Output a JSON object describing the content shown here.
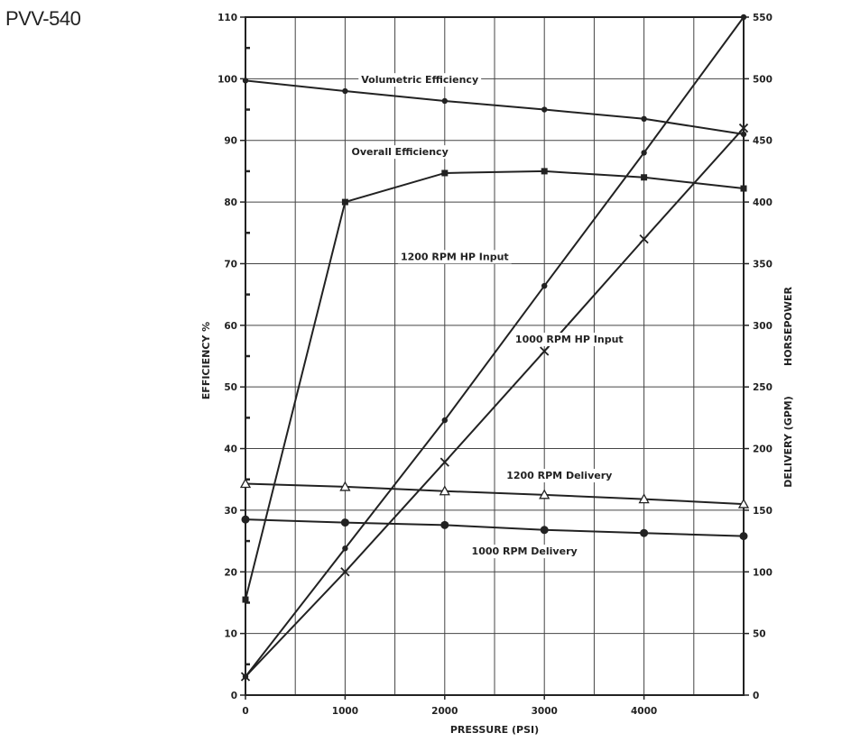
{
  "page_title": "PVV-540",
  "chart_data": {
    "type": "line",
    "xlabel": "PRESSURE (PSI)",
    "ylabel_left": "EFFICIENCY %",
    "ylabel_right": [
      "HORSEPOWER",
      "DELIVERY (GPM)"
    ],
    "xlim": [
      0,
      5000
    ],
    "ylim_left": [
      0,
      110
    ],
    "ylim_right": [
      0,
      550
    ],
    "x_ticks": [
      0,
      1000,
      2000,
      3000,
      4000
    ],
    "y_ticks_left": [
      0,
      10,
      20,
      30,
      40,
      50,
      60,
      70,
      80,
      90,
      100,
      110
    ],
    "y_ticks_right": [
      0,
      50,
      100,
      150,
      200,
      250,
      300,
      350,
      400,
      450,
      500,
      550
    ],
    "grid": true,
    "series": [
      {
        "name": "Volumetric Efficiency",
        "axis": "left",
        "marker": "dot-small",
        "x": [
          0,
          1000,
          2000,
          3000,
          4000,
          5000
        ],
        "y": [
          99.7,
          98,
          96.4,
          95,
          93.5,
          91
        ],
        "label_pos": [
          1750,
          99.3
        ]
      },
      {
        "name": "Overall Efficiency",
        "axis": "left",
        "marker": "square",
        "x": [
          0,
          1000,
          2000,
          3000,
          4000,
          5000
        ],
        "y": [
          15.5,
          80,
          84.7,
          85,
          84,
          82.2
        ],
        "label_pos": [
          1550,
          87.6
        ]
      },
      {
        "name": "1200 RPM HP Input",
        "axis": "right",
        "marker": "dot-small",
        "x": [
          0,
          1000,
          2000,
          3000,
          4000,
          5000
        ],
        "y": [
          15,
          119,
          223,
          332,
          440,
          550
        ],
        "label_pos": [
          2100,
          353
        ]
      },
      {
        "name": "1000 RPM HP Input",
        "axis": "right",
        "marker": "x",
        "x": [
          0,
          1000,
          2000,
          3000,
          4000,
          5000
        ],
        "y": [
          15,
          100,
          189,
          279,
          370,
          460
        ],
        "label_pos": [
          3250,
          286
        ]
      },
      {
        "name": "1200 RPM Delivery",
        "axis": "left",
        "marker": "triangle",
        "x": [
          0,
          1000,
          2000,
          3000,
          4000,
          5000
        ],
        "y": [
          34.3,
          33.8,
          33.1,
          32.5,
          31.8,
          31
        ],
        "label_pos": [
          3150,
          35.1
        ]
      },
      {
        "name": "1000 RPM Delivery",
        "axis": "left",
        "marker": "dot-large",
        "x": [
          0,
          1000,
          2000,
          3000,
          4000,
          5000
        ],
        "y": [
          28.5,
          28,
          27.6,
          26.8,
          26.3,
          25.8
        ],
        "label_pos": [
          2800,
          22.8
        ]
      }
    ],
    "colors": {
      "line": "#222222",
      "grid": "#444444",
      "background": "#ffffff"
    }
  }
}
